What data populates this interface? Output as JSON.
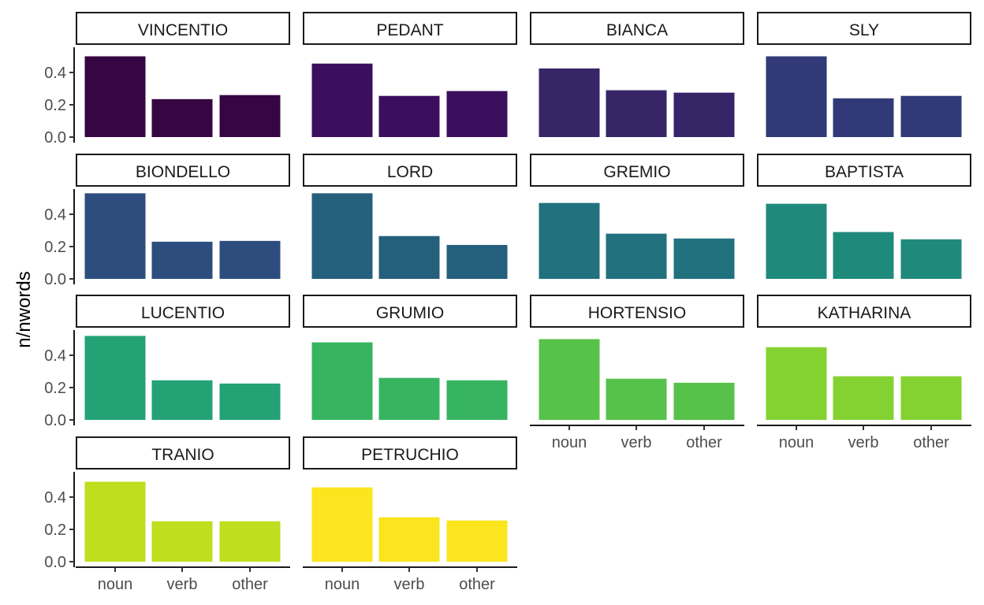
{
  "chart_data": {
    "type": "bar",
    "ylabel": "n/nwords",
    "xlabel": "",
    "categories": [
      "noun",
      "verb",
      "other"
    ],
    "ylim": [
      0,
      0.55
    ],
    "y_ticks": [
      "0.0",
      "0.2",
      "0.4"
    ],
    "facets": [
      {
        "name": "VINCENTIO",
        "values": [
          0.5,
          0.235,
          0.26
        ],
        "color": "#360642"
      },
      {
        "name": "PEDANT",
        "values": [
          0.455,
          0.255,
          0.285
        ],
        "color": "#3c0f5e"
      },
      {
        "name": "BIANCA",
        "values": [
          0.425,
          0.29,
          0.275
        ],
        "color": "#372568"
      },
      {
        "name": "SLY",
        "values": [
          0.5,
          0.24,
          0.255
        ],
        "color": "#313a77"
      },
      {
        "name": "BIONDELLO",
        "values": [
          0.53,
          0.23,
          0.235
        ],
        "color": "#2d4d7f"
      },
      {
        "name": "LORD",
        "values": [
          0.53,
          0.265,
          0.21
        ],
        "color": "#245f7c"
      },
      {
        "name": "GREMIO",
        "values": [
          0.47,
          0.28,
          0.25
        ],
        "color": "#21717e"
      },
      {
        "name": "BAPTISTA",
        "values": [
          0.465,
          0.29,
          0.245
        ],
        "color": "#1f8a7c"
      },
      {
        "name": "LUCENTIO",
        "values": [
          0.52,
          0.245,
          0.225
        ],
        "color": "#23a275"
      },
      {
        "name": "GRUMIO",
        "values": [
          0.48,
          0.26,
          0.245
        ],
        "color": "#36b460"
      },
      {
        "name": "HORTENSIO",
        "values": [
          0.5,
          0.255,
          0.23
        ],
        "color": "#56c24a"
      },
      {
        "name": "KATHARINA",
        "values": [
          0.45,
          0.27,
          0.27
        ],
        "color": "#84d232"
      },
      {
        "name": "TRANIO",
        "values": [
          0.495,
          0.25,
          0.25
        ],
        "color": "#bede1e"
      },
      {
        "name": "PETRUCHIO",
        "values": [
          0.46,
          0.275,
          0.255
        ],
        "color": "#fbe51e"
      }
    ],
    "x_axis_shown_on": [
      "HORTENSIO",
      "KATHARINA",
      "TRANIO",
      "PETRUCHIO"
    ],
    "y_axis_shown_on": [
      "VINCENTIO",
      "BIONDELLO",
      "LUCENTIO",
      "TRANIO"
    ],
    "grid": false,
    "legend": "none"
  }
}
